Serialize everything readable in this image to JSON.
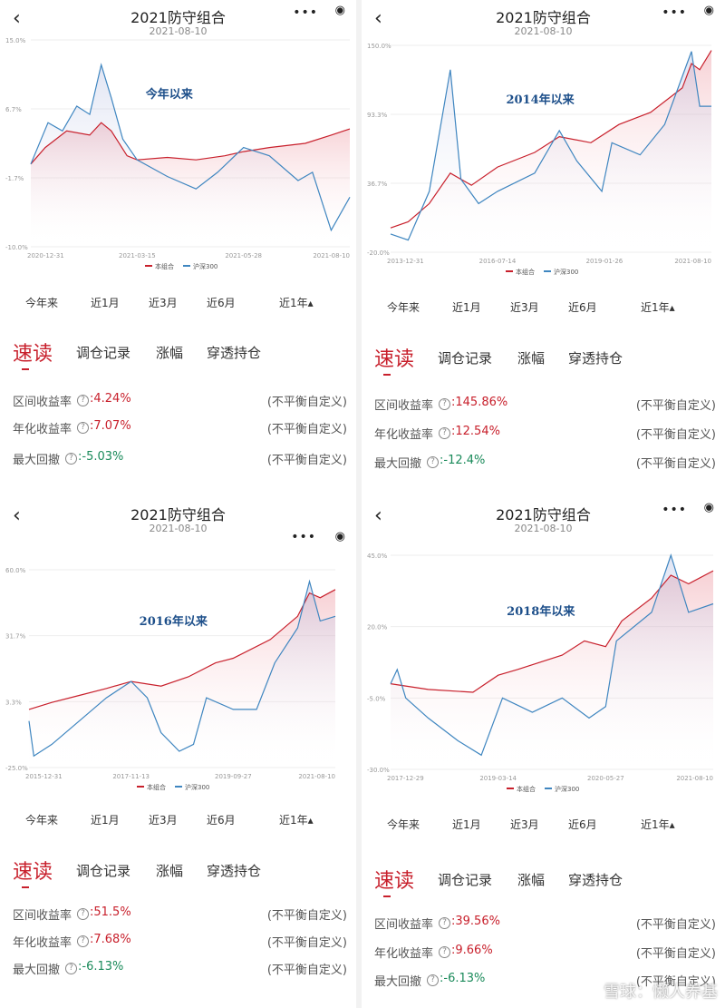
{
  "panels": [
    {
      "title": "2021防守组合",
      "date": "2021-08-10",
      "chart_data": {
        "type": "line",
        "annotation": "今年以来",
        "y_ticks": [
          "15.0%",
          "6.7%",
          "-1.7%",
          "-10.0%"
        ],
        "ylim": [
          -10,
          15
        ],
        "x_ticks": [
          "2020-12-31",
          "2021-03-15",
          "2021-05-28",
          "2021-08-10"
        ],
        "x_range": [
          "2020-12-31",
          "2021-08-10"
        ],
        "series": [
          {
            "name": "本组合",
            "color": "#c8202c",
            "points": [
              [
                "2020-12-31",
                0
              ],
              [
                "2021-01-10",
                2
              ],
              [
                "2021-01-25",
                4
              ],
              [
                "2021-02-10",
                3.5
              ],
              [
                "2021-02-18",
                5
              ],
              [
                "2021-02-25",
                4
              ],
              [
                "2021-03-08",
                1
              ],
              [
                "2021-03-15",
                0.5
              ],
              [
                "2021-04-05",
                0.8
              ],
              [
                "2021-04-25",
                0.5
              ],
              [
                "2021-05-15",
                1
              ],
              [
                "2021-05-28",
                1.5
              ],
              [
                "2021-06-15",
                2
              ],
              [
                "2021-07-10",
                2.5
              ],
              [
                "2021-07-28",
                3.5
              ],
              [
                "2021-08-10",
                4.24
              ]
            ]
          },
          {
            "name": "沪深300",
            "color": "#3f86c0",
            "points": [
              [
                "2020-12-31",
                0
              ],
              [
                "2021-01-12",
                5
              ],
              [
                "2021-01-22",
                4
              ],
              [
                "2021-02-01",
                7
              ],
              [
                "2021-02-10",
                6
              ],
              [
                "2021-02-18",
                12
              ],
              [
                "2021-02-25",
                8
              ],
              [
                "2021-03-05",
                3
              ],
              [
                "2021-03-15",
                0.5
              ],
              [
                "2021-04-05",
                -1.5
              ],
              [
                "2021-04-25",
                -3
              ],
              [
                "2021-05-10",
                -1
              ],
              [
                "2021-05-28",
                2
              ],
              [
                "2021-06-15",
                1
              ],
              [
                "2021-07-05",
                -2
              ],
              [
                "2021-07-15",
                -1
              ],
              [
                "2021-07-28",
                -8
              ],
              [
                "2021-08-10",
                -4
              ]
            ]
          }
        ]
      },
      "tabs": [
        "今年来",
        "近1月",
        "近3月",
        "近6月",
        "近1年▴"
      ],
      "section": {
        "title": "速读",
        "menu": [
          "调仓记录",
          "涨幅",
          "穿透持仓"
        ]
      },
      "stats": [
        {
          "label": "区间收益率",
          "value": ":4.24%",
          "color": "red",
          "note": "(不平衡自定义)"
        },
        {
          "label": "年化收益率",
          "value": ":7.07%",
          "color": "red",
          "note": "(不平衡自定义)"
        },
        {
          "label": "最大回撤",
          "value": ":-5.03%",
          "color": "green",
          "note": "(不平衡自定义)"
        }
      ]
    },
    {
      "title": "2021防守组合",
      "date": "2021-08-10",
      "chart_data": {
        "type": "line",
        "annotation": "2014年以来",
        "y_ticks": [
          "150.0%",
          "93.3%",
          "36.7%",
          "-20.0%"
        ],
        "ylim": [
          -20,
          150
        ],
        "x_ticks": [
          "2013-12-31",
          "2016-07-14",
          "2019-01-26",
          "2021-08-10"
        ],
        "x_range": [
          "2013-12-31",
          "2021-08-10"
        ],
        "series": [
          {
            "name": "本组合",
            "color": "#c8202c",
            "points": [
              [
                "2013-12-31",
                0
              ],
              [
                "2014-06-01",
                5
              ],
              [
                "2014-12-01",
                20
              ],
              [
                "2015-06-01",
                45
              ],
              [
                "2015-12-01",
                35
              ],
              [
                "2016-07-14",
                50
              ],
              [
                "2017-06-01",
                62
              ],
              [
                "2018-01-01",
                75
              ],
              [
                "2018-10-01",
                70
              ],
              [
                "2019-06-01",
                85
              ],
              [
                "2020-03-01",
                95
              ],
              [
                "2020-12-01",
                115
              ],
              [
                "2021-02-18",
                135
              ],
              [
                "2021-05-01",
                130
              ],
              [
                "2021-08-10",
                145.86
              ]
            ]
          },
          {
            "name": "沪深300",
            "color": "#3f86c0",
            "points": [
              [
                "2013-12-31",
                -5
              ],
              [
                "2014-06-01",
                -10
              ],
              [
                "2014-12-01",
                30
              ],
              [
                "2015-06-01",
                130
              ],
              [
                "2015-09-01",
                40
              ],
              [
                "2016-02-01",
                20
              ],
              [
                "2016-07-14",
                30
              ],
              [
                "2017-06-01",
                45
              ],
              [
                "2018-01-01",
                80
              ],
              [
                "2018-06-01",
                55
              ],
              [
                "2019-01-04",
                30
              ],
              [
                "2019-04-01",
                70
              ],
              [
                "2019-12-01",
                60
              ],
              [
                "2020-07-01",
                85
              ],
              [
                "2021-02-18",
                145
              ],
              [
                "2021-05-01",
                100
              ],
              [
                "2021-08-10",
                100
              ]
            ]
          }
        ]
      },
      "tabs": [
        "今年来",
        "近1月",
        "近3月",
        "近6月",
        "近1年▴"
      ],
      "section": {
        "title": "速读",
        "menu": [
          "调仓记录",
          "涨幅",
          "穿透持仓"
        ]
      },
      "stats": [
        {
          "label": "区间收益率",
          "value": ":145.86%",
          "color": "red",
          "note": "(不平衡自定义)"
        },
        {
          "label": "年化收益率",
          "value": ":12.54%",
          "color": "red",
          "note": "(不平衡自定义)"
        },
        {
          "label": "最大回撤",
          "value": ":-12.4%",
          "color": "green",
          "note": "(不平衡自定义)"
        }
      ]
    },
    {
      "title": "2021防守组合",
      "date": "2021-08-10",
      "chart_data": {
        "type": "line",
        "annotation": "2016年以来",
        "y_ticks": [
          "60.0%",
          "31.7%",
          "3.3%",
          "-25.0%"
        ],
        "ylim": [
          -25,
          60
        ],
        "x_ticks": [
          "2015-12-31",
          "2017-11-13",
          "2019-09-27",
          "2021-08-10"
        ],
        "x_range": [
          "2015-12-31",
          "2021-08-10"
        ],
        "series": [
          {
            "name": "本组合",
            "color": "#c8202c",
            "points": [
              [
                "2015-12-31",
                0
              ],
              [
                "2016-06-01",
                3
              ],
              [
                "2016-12-01",
                6
              ],
              [
                "2017-06-01",
                9
              ],
              [
                "2017-11-13",
                12
              ],
              [
                "2018-06-01",
                10
              ],
              [
                "2018-12-01",
                14
              ],
              [
                "2019-06-01",
                20
              ],
              [
                "2019-09-27",
                22
              ],
              [
                "2020-06-01",
                30
              ],
              [
                "2020-12-01",
                40
              ],
              [
                "2021-02-18",
                50
              ],
              [
                "2021-05-01",
                48
              ],
              [
                "2021-08-10",
                51.5
              ]
            ]
          },
          {
            "name": "沪深300",
            "color": "#3f86c0",
            "points": [
              [
                "2015-12-31",
                -5
              ],
              [
                "2016-02-01",
                -20
              ],
              [
                "2016-06-01",
                -15
              ],
              [
                "2016-12-01",
                -5
              ],
              [
                "2017-06-01",
                5
              ],
              [
                "2017-11-13",
                12
              ],
              [
                "2018-03-01",
                5
              ],
              [
                "2018-06-01",
                -10
              ],
              [
                "2018-10-01",
                -18
              ],
              [
                "2019-01-04",
                -15
              ],
              [
                "2019-04-01",
                5
              ],
              [
                "2019-09-27",
                0
              ],
              [
                "2020-03-01",
                0
              ],
              [
                "2020-07-01",
                20
              ],
              [
                "2020-12-01",
                35
              ],
              [
                "2021-02-18",
                55
              ],
              [
                "2021-05-01",
                38
              ],
              [
                "2021-08-10",
                40
              ]
            ]
          }
        ]
      },
      "tabs": [
        "今年来",
        "近1月",
        "近3月",
        "近6月",
        "近1年▴"
      ],
      "section": {
        "title": "速读",
        "menu": [
          "调仓记录",
          "涨幅",
          "穿透持仓"
        ]
      },
      "stats": [
        {
          "label": "区间收益率",
          "value": ":51.5%",
          "color": "red",
          "note": "(不平衡自定义)"
        },
        {
          "label": "年化收益率",
          "value": ":7.68%",
          "color": "red",
          "note": "(不平衡自定义)"
        },
        {
          "label": "最大回撤",
          "value": ":-6.13%",
          "color": "green",
          "note": "(不平衡自定义)"
        }
      ]
    },
    {
      "title": "2021防守组合",
      "date": "2021-08-10",
      "chart_data": {
        "type": "line",
        "annotation": "2018年以来",
        "y_ticks": [
          "45.0%",
          "20.0%",
          "-5.0%",
          "-30.0%"
        ],
        "ylim": [
          -30,
          45
        ],
        "x_ticks": [
          "2017-12-29",
          "2019-03-14",
          "2020-05-27",
          "2021-08-10"
        ],
        "x_range": [
          "2017-12-29",
          "2021-08-10"
        ],
        "series": [
          {
            "name": "本组合",
            "color": "#c8202c",
            "points": [
              [
                "2017-12-29",
                0
              ],
              [
                "2018-06-01",
                -2
              ],
              [
                "2018-12-01",
                -3
              ],
              [
                "2019-03-14",
                3
              ],
              [
                "2019-06-01",
                5
              ],
              [
                "2019-12-01",
                10
              ],
              [
                "2020-03-01",
                15
              ],
              [
                "2020-05-27",
                13
              ],
              [
                "2020-08-01",
                22
              ],
              [
                "2020-12-01",
                30
              ],
              [
                "2021-02-18",
                38
              ],
              [
                "2021-05-01",
                35
              ],
              [
                "2021-08-10",
                39.56
              ]
            ]
          },
          {
            "name": "沪深300",
            "color": "#3f86c0",
            "points": [
              [
                "2017-12-29",
                0
              ],
              [
                "2018-01-25",
                5
              ],
              [
                "2018-03-01",
                -5
              ],
              [
                "2018-06-01",
                -12
              ],
              [
                "2018-10-01",
                -20
              ],
              [
                "2019-01-04",
                -25
              ],
              [
                "2019-04-01",
                -5
              ],
              [
                "2019-08-01",
                -10
              ],
              [
                "2019-12-01",
                -5
              ],
              [
                "2020-03-20",
                -12
              ],
              [
                "2020-05-27",
                -8
              ],
              [
                "2020-07-10",
                15
              ],
              [
                "2020-12-01",
                25
              ],
              [
                "2021-02-18",
                45
              ],
              [
                "2021-05-01",
                25
              ],
              [
                "2021-08-10",
                28
              ]
            ]
          }
        ]
      },
      "tabs": [
        "今年来",
        "近1月",
        "近3月",
        "近6月",
        "近1年▴"
      ],
      "section": {
        "title": "速读",
        "menu": [
          "调仓记录",
          "涨幅",
          "穿透持仓"
        ]
      },
      "stats": [
        {
          "label": "区间收益率",
          "value": ":39.56%",
          "color": "red",
          "note": "(不平衡自定义)"
        },
        {
          "label": "年化收益率",
          "value": ":9.66%",
          "color": "red",
          "note": "(不平衡自定义)"
        },
        {
          "label": "最大回撤",
          "value": ":-6.13%",
          "color": "green",
          "note": "(不平衡自定义)"
        }
      ]
    }
  ],
  "watermark": "雪球：懒人养基"
}
